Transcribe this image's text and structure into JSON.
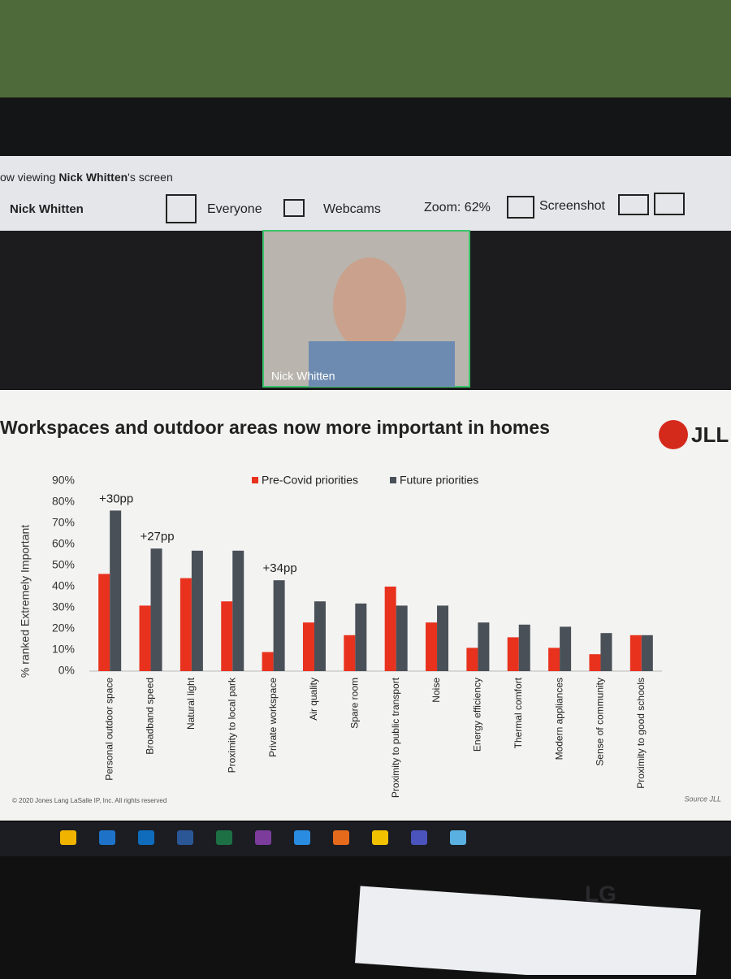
{
  "toolbar": {
    "viewing_prefix": "ow viewing",
    "presenter": "Nick Whitten",
    "viewing_suffix": "'s screen",
    "host": "Nick Whitten",
    "audience": "Everyone",
    "webcams": "Webcams",
    "zoom": "Zoom: 62%",
    "screenshot": "Screenshot"
  },
  "video": {
    "name": "Nick Whitten"
  },
  "slide": {
    "logo": "JLL",
    "copyright": "© 2020 Jones Lang LaSalle IP, Inc. All rights reserved",
    "source": "Source  JLL"
  },
  "monitor": {
    "brand": "LG"
  },
  "chart_data": {
    "type": "bar",
    "title": "Workspaces and outdoor areas now more important in homes",
    "y_label": "% ranked Extremely Important",
    "categories": [
      "Personal outdoor space",
      "Broadband speed",
      "Natural light",
      "Proximity to local park",
      "Private workspace",
      "Air quality",
      "Spare room",
      "Proximity to public transport",
      "Noise",
      "Energy efficiency",
      "Thermal comfort",
      "Modern appliances",
      "Sense of community",
      "Proximity to good schools"
    ],
    "series": [
      {
        "name": "Pre-Covid priorities",
        "color": "#e8321e",
        "values": [
          46,
          31,
          44,
          33,
          9,
          23,
          17,
          40,
          23,
          11,
          16,
          11,
          8,
          17
        ]
      },
      {
        "name": "Future priorities",
        "color": "#4a5058",
        "values": [
          76,
          58,
          57,
          57,
          43,
          33,
          32,
          31,
          31,
          23,
          22,
          21,
          18,
          17
        ]
      }
    ],
    "annotations": [
      "+30pp",
      "+27pp",
      "+34pp"
    ],
    "ylim": [
      0,
      90
    ],
    "yticks": [
      {
        "value": 0,
        "label": "0%"
      },
      {
        "value": 10,
        "label": "10%"
      },
      {
        "value": 20,
        "label": "20%"
      },
      {
        "value": 30,
        "label": "30%"
      },
      {
        "value": 40,
        "label": "40%"
      },
      {
        "value": 50,
        "label": "50%"
      },
      {
        "value": 60,
        "label": "60%"
      },
      {
        "value": 70,
        "label": "70%"
      },
      {
        "value": 80,
        "label": "80%"
      },
      {
        "value": 90,
        "label": "90%"
      }
    ],
    "grid": false,
    "legend": "top"
  }
}
